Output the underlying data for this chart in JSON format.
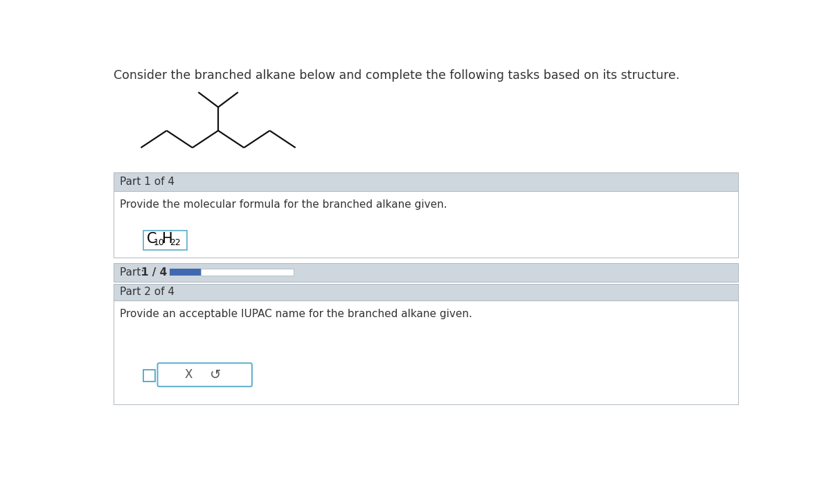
{
  "header_text": "Consider the branched alkane below and complete the following tasks based on its structure.",
  "header_fontsize": 12.5,
  "header_color": "#333333",
  "bg_color": "#ffffff",
  "molecule_color": "#111111",
  "section_bg_light": "#ced6de",
  "section_bg_white": "#ffffff",
  "part1_header": "Part 1 of 4",
  "part1_question": "Provide the molecular formula for the branched alkane given.",
  "part_progress_label_normal": "Part: ",
  "part_progress_label_bold": "1 / 4",
  "progress_bar_filled_color": "#4169b0",
  "part2_header": "Part 2 of 4",
  "part2_question": "Provide an acceptable IUPAC name for the branched alkane given.",
  "x_button_text": "X",
  "undo_symbol": "↺",
  "input_border_color": "#5aaccc",
  "text_fontsize": 11,
  "small_fontsize": 9,
  "panel_border_color": "#b0b8c0",
  "mol_lw": 1.6
}
